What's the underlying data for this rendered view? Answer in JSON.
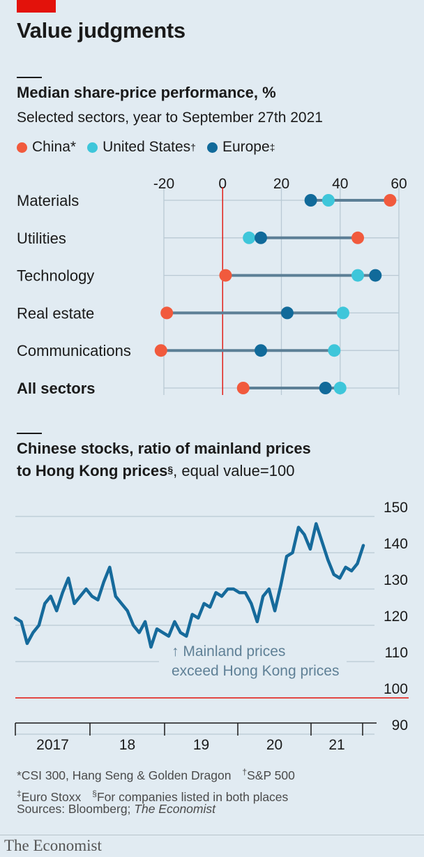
{
  "title": "Value judgments",
  "colors": {
    "china": "#f15a3d",
    "us": "#3ec6da",
    "europe": "#116a9a",
    "accent": "#e3120b",
    "connector": "#5c7f96",
    "line": "#166a9b"
  },
  "chart1": {
    "title": "Median share-price performance, %",
    "subtitle": "Selected sectors, year to September 27th 2021",
    "legend": [
      {
        "name": "China",
        "mark": "*",
        "color": "#f15a3d"
      },
      {
        "name": "United States",
        "mark": "†",
        "color": "#3ec6da"
      },
      {
        "name": "Europe",
        "mark": "‡",
        "color": "#116a9a"
      }
    ]
  },
  "chart2": {
    "title_line1": "Chinese stocks, ratio of mainland prices",
    "title_line2": "to Hong Kong prices",
    "title_mark": "§",
    "title_suffix": ", equal value=100",
    "annotation_line1": "↑ Mainland prices",
    "annotation_line2": "exceed Hong Kong prices"
  },
  "chart_data": [
    {
      "type": "dot-range",
      "categories": [
        "Materials",
        "Utilities",
        "Technology",
        "Real estate",
        "Communications",
        "All sectors"
      ],
      "series": [
        {
          "name": "China",
          "values": [
            57,
            46,
            1,
            -19,
            -21,
            7
          ]
        },
        {
          "name": "United States",
          "values": [
            36,
            9,
            46,
            41,
            38,
            40
          ]
        },
        {
          "name": "Europe",
          "values": [
            30,
            13,
            52,
            22,
            13,
            35
          ]
        }
      ],
      "xlim": [
        -20,
        60
      ],
      "xticks": [
        "-20",
        "0",
        "20",
        "40",
        "60"
      ],
      "grid": true,
      "reference_line": 0
    },
    {
      "type": "line",
      "x": [
        "2016-10",
        "2016-11",
        "2016-12",
        "2017-01",
        "2017-02",
        "2017-03",
        "2017-04",
        "2017-05",
        "2017-06",
        "2017-07",
        "2017-08",
        "2017-09",
        "2017-10",
        "2017-11",
        "2017-12",
        "2018-01",
        "2018-02",
        "2018-03",
        "2018-04",
        "2018-05",
        "2018-06",
        "2018-07",
        "2018-08",
        "2018-09",
        "2018-10",
        "2018-11",
        "2018-12",
        "2019-01",
        "2019-02",
        "2019-03",
        "2019-04",
        "2019-05",
        "2019-06",
        "2019-07",
        "2019-08",
        "2019-09",
        "2019-10",
        "2019-11",
        "2019-12",
        "2020-01",
        "2020-02",
        "2020-03",
        "2020-04",
        "2020-05",
        "2020-06",
        "2020-07",
        "2020-08",
        "2020-09",
        "2020-10",
        "2020-11",
        "2020-12",
        "2021-01",
        "2021-02",
        "2021-03",
        "2021-04",
        "2021-05",
        "2021-06",
        "2021-07",
        "2021-08",
        "2021-09"
      ],
      "values": [
        122,
        121,
        115,
        118,
        120,
        126,
        128,
        124,
        129,
        133,
        126,
        128,
        130,
        128,
        127,
        132,
        136,
        128,
        126,
        124,
        120,
        118,
        121,
        114,
        119,
        118,
        117,
        121,
        118,
        117,
        123,
        122,
        126,
        125,
        129,
        128,
        130,
        130,
        129,
        129,
        126,
        121,
        128,
        130,
        124,
        131,
        139,
        140,
        147,
        145,
        141,
        148,
        143,
        138,
        134,
        133,
        136,
        135,
        137,
        142
      ],
      "ylim": [
        90,
        150
      ],
      "yticks": [
        "90",
        "100",
        "110",
        "120",
        "130",
        "140",
        "150"
      ],
      "xtick_labels": [
        "2017",
        "18",
        "19",
        "20",
        "21"
      ],
      "reference_line": 100
    }
  ],
  "footnotes": {
    "china": "*CSI 300, Hang Seng & Golden Dragon",
    "us_mark": "†",
    "us": "S&P 500",
    "europe_mark": "‡",
    "europe": "Euro Stoxx",
    "both_mark": "§",
    "both": "For companies listed in both places"
  },
  "sources_prefix": "Sources: Bloomberg; ",
  "sources_italic": "The Economist",
  "brand": "The Economist"
}
